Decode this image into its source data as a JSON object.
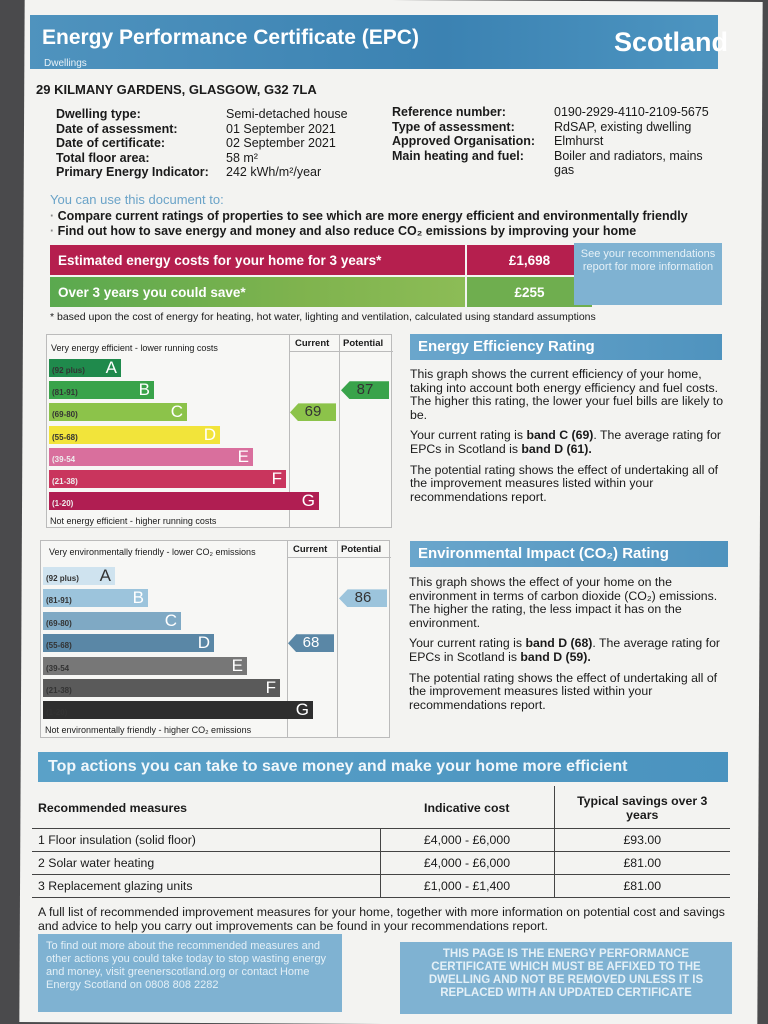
{
  "header": {
    "title": "Energy Performance Certificate (EPC)",
    "subtitle": "Dwellings",
    "region": "Scotland"
  },
  "address": "29 KILMANY GARDENS, GLASGOW, G32 7LA",
  "details_left": [
    {
      "label": "Dwelling type:",
      "value": "Semi-detached house"
    },
    {
      "label": "Date of assessment:",
      "value": "01 September 2021"
    },
    {
      "label": "Date of certificate:",
      "value": "02 September 2021"
    },
    {
      "label": "Total floor area:",
      "value": "58 m²"
    },
    {
      "label": "Primary Energy Indicator:",
      "value": "242 kWh/m²/year"
    }
  ],
  "details_right": [
    {
      "label": "Reference number:",
      "value": "0190-2929-4110-2109-5675"
    },
    {
      "label": "Type of assessment:",
      "value": "RdSAP, existing dwelling"
    },
    {
      "label": "Approved Organisation:",
      "value": "Elmhurst"
    },
    {
      "label": "Main heating and fuel:",
      "value": "Boiler and radiators, mains"
    },
    {
      "label": "",
      "value": "gas"
    }
  ],
  "use_doc": "You can use this document to:",
  "bullets": [
    "Compare current ratings of properties to see which are more energy efficient and environmentally friendly",
    "Find out how to save energy and money and also reduce CO₂ emissions by improving your home"
  ],
  "costs": {
    "row1_label": "Estimated energy costs for your home for 3 years*",
    "row1_value": "£1,698",
    "row2_label": "Over 3 years you could save*",
    "row2_value": "£255",
    "see_box": "See your recommendations report for more information",
    "footnote": "* based upon the cost of energy for heating, hot water, lighting and ventilation, calculated using standard assumptions"
  },
  "energy_chart": {
    "top_label": "Very energy efficient - lower running costs",
    "bottom_label": "Not energy efficient - higher running costs",
    "col_current": "Current",
    "col_potential": "Potential",
    "bands": [
      {
        "letter": "A",
        "range": "(92 plus)",
        "color": "#1f8a4c"
      },
      {
        "letter": "B",
        "range": "(81-91)",
        "color": "#39a34a"
      },
      {
        "letter": "C",
        "range": "(69-80)",
        "color": "#8cc34a"
      },
      {
        "letter": "D",
        "range": "(55-68)",
        "color": "#f2e43a"
      },
      {
        "letter": "E",
        "range": "(39-54",
        "color": "#d96f9d"
      },
      {
        "letter": "F",
        "range": "(21-38)",
        "color": "#c9355d"
      },
      {
        "letter": "G",
        "range": "(1-20)",
        "color": "#b01e52"
      }
    ],
    "current": "69",
    "potential": "87"
  },
  "energy_rating": {
    "title": "Energy Efficiency Rating",
    "p1": "This graph shows the current efficiency of your home, taking into account both energy efficiency and fuel costs. The higher this rating, the lower your fuel bills are likely to be.",
    "p2_a": "Your current rating is ",
    "p2_b": "band C (69)",
    "p2_c": ". The average rating for EPCs in Scotland is ",
    "p2_d": "band D (61).",
    "p3": "The potential rating shows the effect of undertaking all of the improvement measures listed within your recommendations report."
  },
  "env_chart": {
    "top_label": "Very environmentally friendly - lower CO₂ emissions",
    "bottom_label": "Not environmentally friendly - higher CO₂ emissions",
    "col_current": "Current",
    "col_potential": "Potential",
    "bands": [
      {
        "letter": "A",
        "range": "(92 plus)",
        "color": "#cfe3ef"
      },
      {
        "letter": "B",
        "range": "(81-91)",
        "color": "#9cc4dc"
      },
      {
        "letter": "C",
        "range": "(69-80)",
        "color": "#7fa9c4"
      },
      {
        "letter": "D",
        "range": "(55-68)",
        "color": "#5a87a6"
      },
      {
        "letter": "E",
        "range": "(39-54",
        "color": "#777777"
      },
      {
        "letter": "F",
        "range": "(21-38)",
        "color": "#5a5a5a"
      },
      {
        "letter": "G",
        "range": "(1-20)",
        "color": "#2e2e2e"
      }
    ],
    "current": "68",
    "potential": "86"
  },
  "env_rating": {
    "title": "Environmental Impact (CO₂) Rating",
    "p1": "This graph shows the effect of your home on the environment in terms of carbon dioxide (CO₂) emissions. The higher the rating, the less impact it has on the environment.",
    "p2_a": "Your current rating is ",
    "p2_b": "band D (68)",
    "p2_c": ". The average rating for EPCs in Scotland is ",
    "p2_d": "band D (59).",
    "p3": "The potential rating shows the effect of undertaking all of the improvement measures listed within your recommendations report."
  },
  "top_actions": {
    "title": "Top actions you can take to save money and make your home more efficient",
    "col1": "Recommended measures",
    "col2": "Indicative cost",
    "col3": "Typical savings over 3 years",
    "rows": [
      {
        "measure": "1 Floor insulation (solid floor)",
        "cost": "£4,000 - £6,000",
        "saving": "£93.00"
      },
      {
        "measure": "2 Solar water heating",
        "cost": "£4,000 - £6,000",
        "saving": "£81.00"
      },
      {
        "measure": "3 Replacement glazing units",
        "cost": "£1,000 - £1,400",
        "saving": "£81.00"
      }
    ],
    "note": "A full list of recommended improvement measures for your home, together with more information on potential cost and savings and advice to help you carry out improvements can be found in your recommendations report."
  },
  "footer": {
    "left": "To find out more about the recommended measures and other actions you could take today to stop wasting energy and money, visit greenerscotland.org or contact Home Energy Scotland on 0808 808 2282",
    "right": "THIS PAGE IS THE ENERGY PERFORMANCE CERTIFICATE WHICH MUST BE AFFIXED TO THE DWELLING AND NOT BE REMOVED UNLESS IT IS REPLACED WITH AN UPDATED CERTIFICATE"
  }
}
